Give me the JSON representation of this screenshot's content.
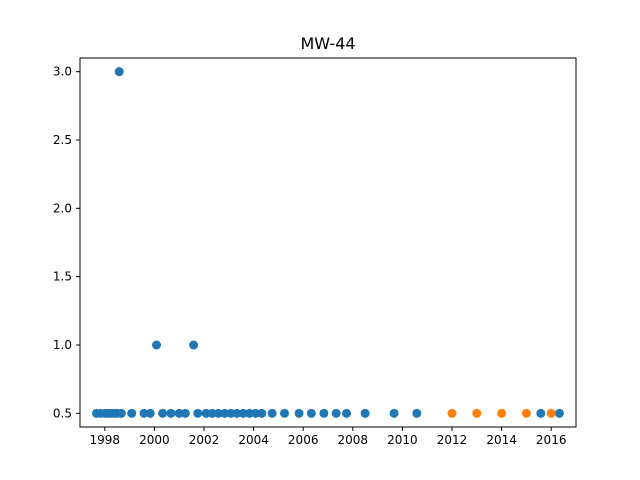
{
  "chart_data": {
    "type": "scatter",
    "title": "MW-44",
    "xlabel": "",
    "ylabel": "",
    "xlim": [
      "1997-01-01",
      "2017-01-01"
    ],
    "ylim": [
      0.4,
      3.1
    ],
    "x_ticks": [
      "1998",
      "2000",
      "2002",
      "2004",
      "2006",
      "2008",
      "2010",
      "2012",
      "2014",
      "2016"
    ],
    "y_ticks": [
      "0.5",
      "1.0",
      "1.5",
      "2.0",
      "2.5",
      "3.0"
    ],
    "grid": false,
    "series": [
      {
        "color": "#1f77b4",
        "points": [
          [
            "1997-09-01",
            0.5
          ],
          [
            "1997-11-01",
            0.5
          ],
          [
            "1998-01-01",
            0.5
          ],
          [
            "1998-02-15",
            0.5
          ],
          [
            "1998-04-01",
            0.5
          ],
          [
            "1998-05-15",
            0.5
          ],
          [
            "1998-07-01",
            0.5
          ],
          [
            "1998-08-01",
            3.0
          ],
          [
            "1998-09-01",
            0.5
          ],
          [
            "1999-02-01",
            0.5
          ],
          [
            "1999-08-01",
            0.5
          ],
          [
            "1999-11-01",
            0.5
          ],
          [
            "2000-02-01",
            1.0
          ],
          [
            "2000-05-01",
            0.5
          ],
          [
            "2000-09-01",
            0.5
          ],
          [
            "2001-01-01",
            0.5
          ],
          [
            "2001-04-01",
            0.5
          ],
          [
            "2001-08-01",
            1.0
          ],
          [
            "2001-10-01",
            0.5
          ],
          [
            "2002-02-01",
            0.5
          ],
          [
            "2002-05-01",
            0.5
          ],
          [
            "2002-08-01",
            0.5
          ],
          [
            "2002-11-01",
            0.5
          ],
          [
            "2003-02-01",
            0.5
          ],
          [
            "2003-05-01",
            0.5
          ],
          [
            "2003-08-01",
            0.5
          ],
          [
            "2003-11-01",
            0.5
          ],
          [
            "2004-02-01",
            0.5
          ],
          [
            "2004-05-01",
            0.5
          ],
          [
            "2004-10-01",
            0.5
          ],
          [
            "2005-04-01",
            0.5
          ],
          [
            "2005-11-01",
            0.5
          ],
          [
            "2006-05-01",
            0.5
          ],
          [
            "2006-11-01",
            0.5
          ],
          [
            "2007-05-01",
            0.5
          ],
          [
            "2007-10-01",
            0.5
          ],
          [
            "2008-07-01",
            0.5
          ],
          [
            "2009-09-01",
            0.5
          ],
          [
            "2010-08-01",
            0.5
          ],
          [
            "2015-08-01",
            0.5
          ],
          [
            "2016-05-01",
            0.5
          ]
        ]
      },
      {
        "color": "#ff7f0e",
        "points": [
          [
            "2012-01-01",
            0.5
          ],
          [
            "2013-01-01",
            0.5
          ],
          [
            "2014-01-01",
            0.5
          ],
          [
            "2015-01-01",
            0.5
          ],
          [
            "2016-01-01",
            0.5
          ]
        ]
      }
    ]
  }
}
